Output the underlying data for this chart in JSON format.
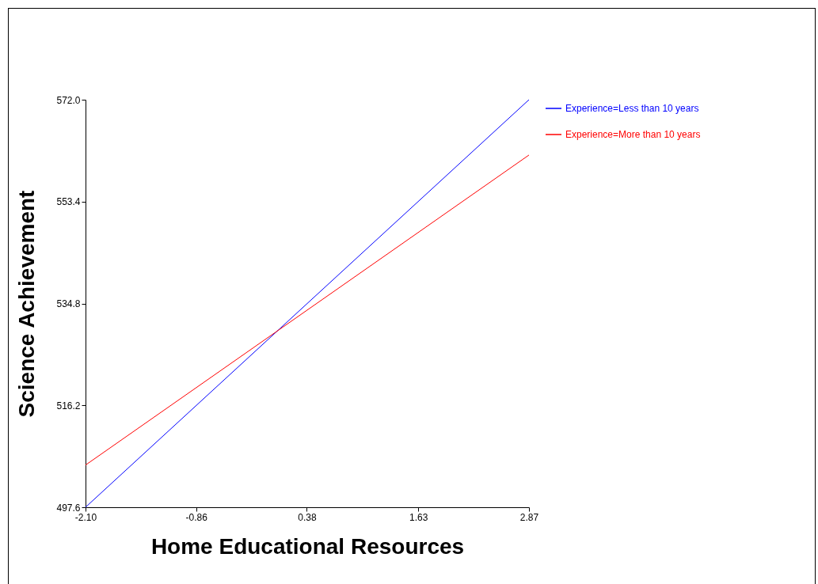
{
  "chart_data": {
    "type": "line",
    "xlabel": "Home Educational Resources",
    "ylabel": "Science Achievement",
    "x": [
      -2.1,
      2.87
    ],
    "series": [
      {
        "name": "Experience=Less than 10 years",
        "color": "#0000ff",
        "values": [
          497.6,
          572.0
        ]
      },
      {
        "name": "Experience=More than 10 years",
        "color": "#ff0000",
        "values": [
          505.3,
          561.9
        ]
      }
    ],
    "xlim": [
      -2.1,
      2.87
    ],
    "xticks": [
      {
        "value": -2.1,
        "label": "-2.10"
      },
      {
        "value": -0.86,
        "label": "-0.86"
      },
      {
        "value": 0.38,
        "label": "0.38"
      },
      {
        "value": 1.63,
        "label": "1.63"
      },
      {
        "value": 2.87,
        "label": "2.87"
      }
    ],
    "ylim": [
      497.6,
      572.0
    ],
    "yticks": [
      {
        "value": 497.6,
        "label": "497.6"
      },
      {
        "value": 516.2,
        "label": "516.2"
      },
      {
        "value": 534.8,
        "label": "534.8"
      },
      {
        "value": 553.4,
        "label": "553.4"
      },
      {
        "value": 572.0,
        "label": "572.0"
      }
    ],
    "grid": false,
    "legend": "top right",
    "marker": "none",
    "line_style": "solid"
  }
}
